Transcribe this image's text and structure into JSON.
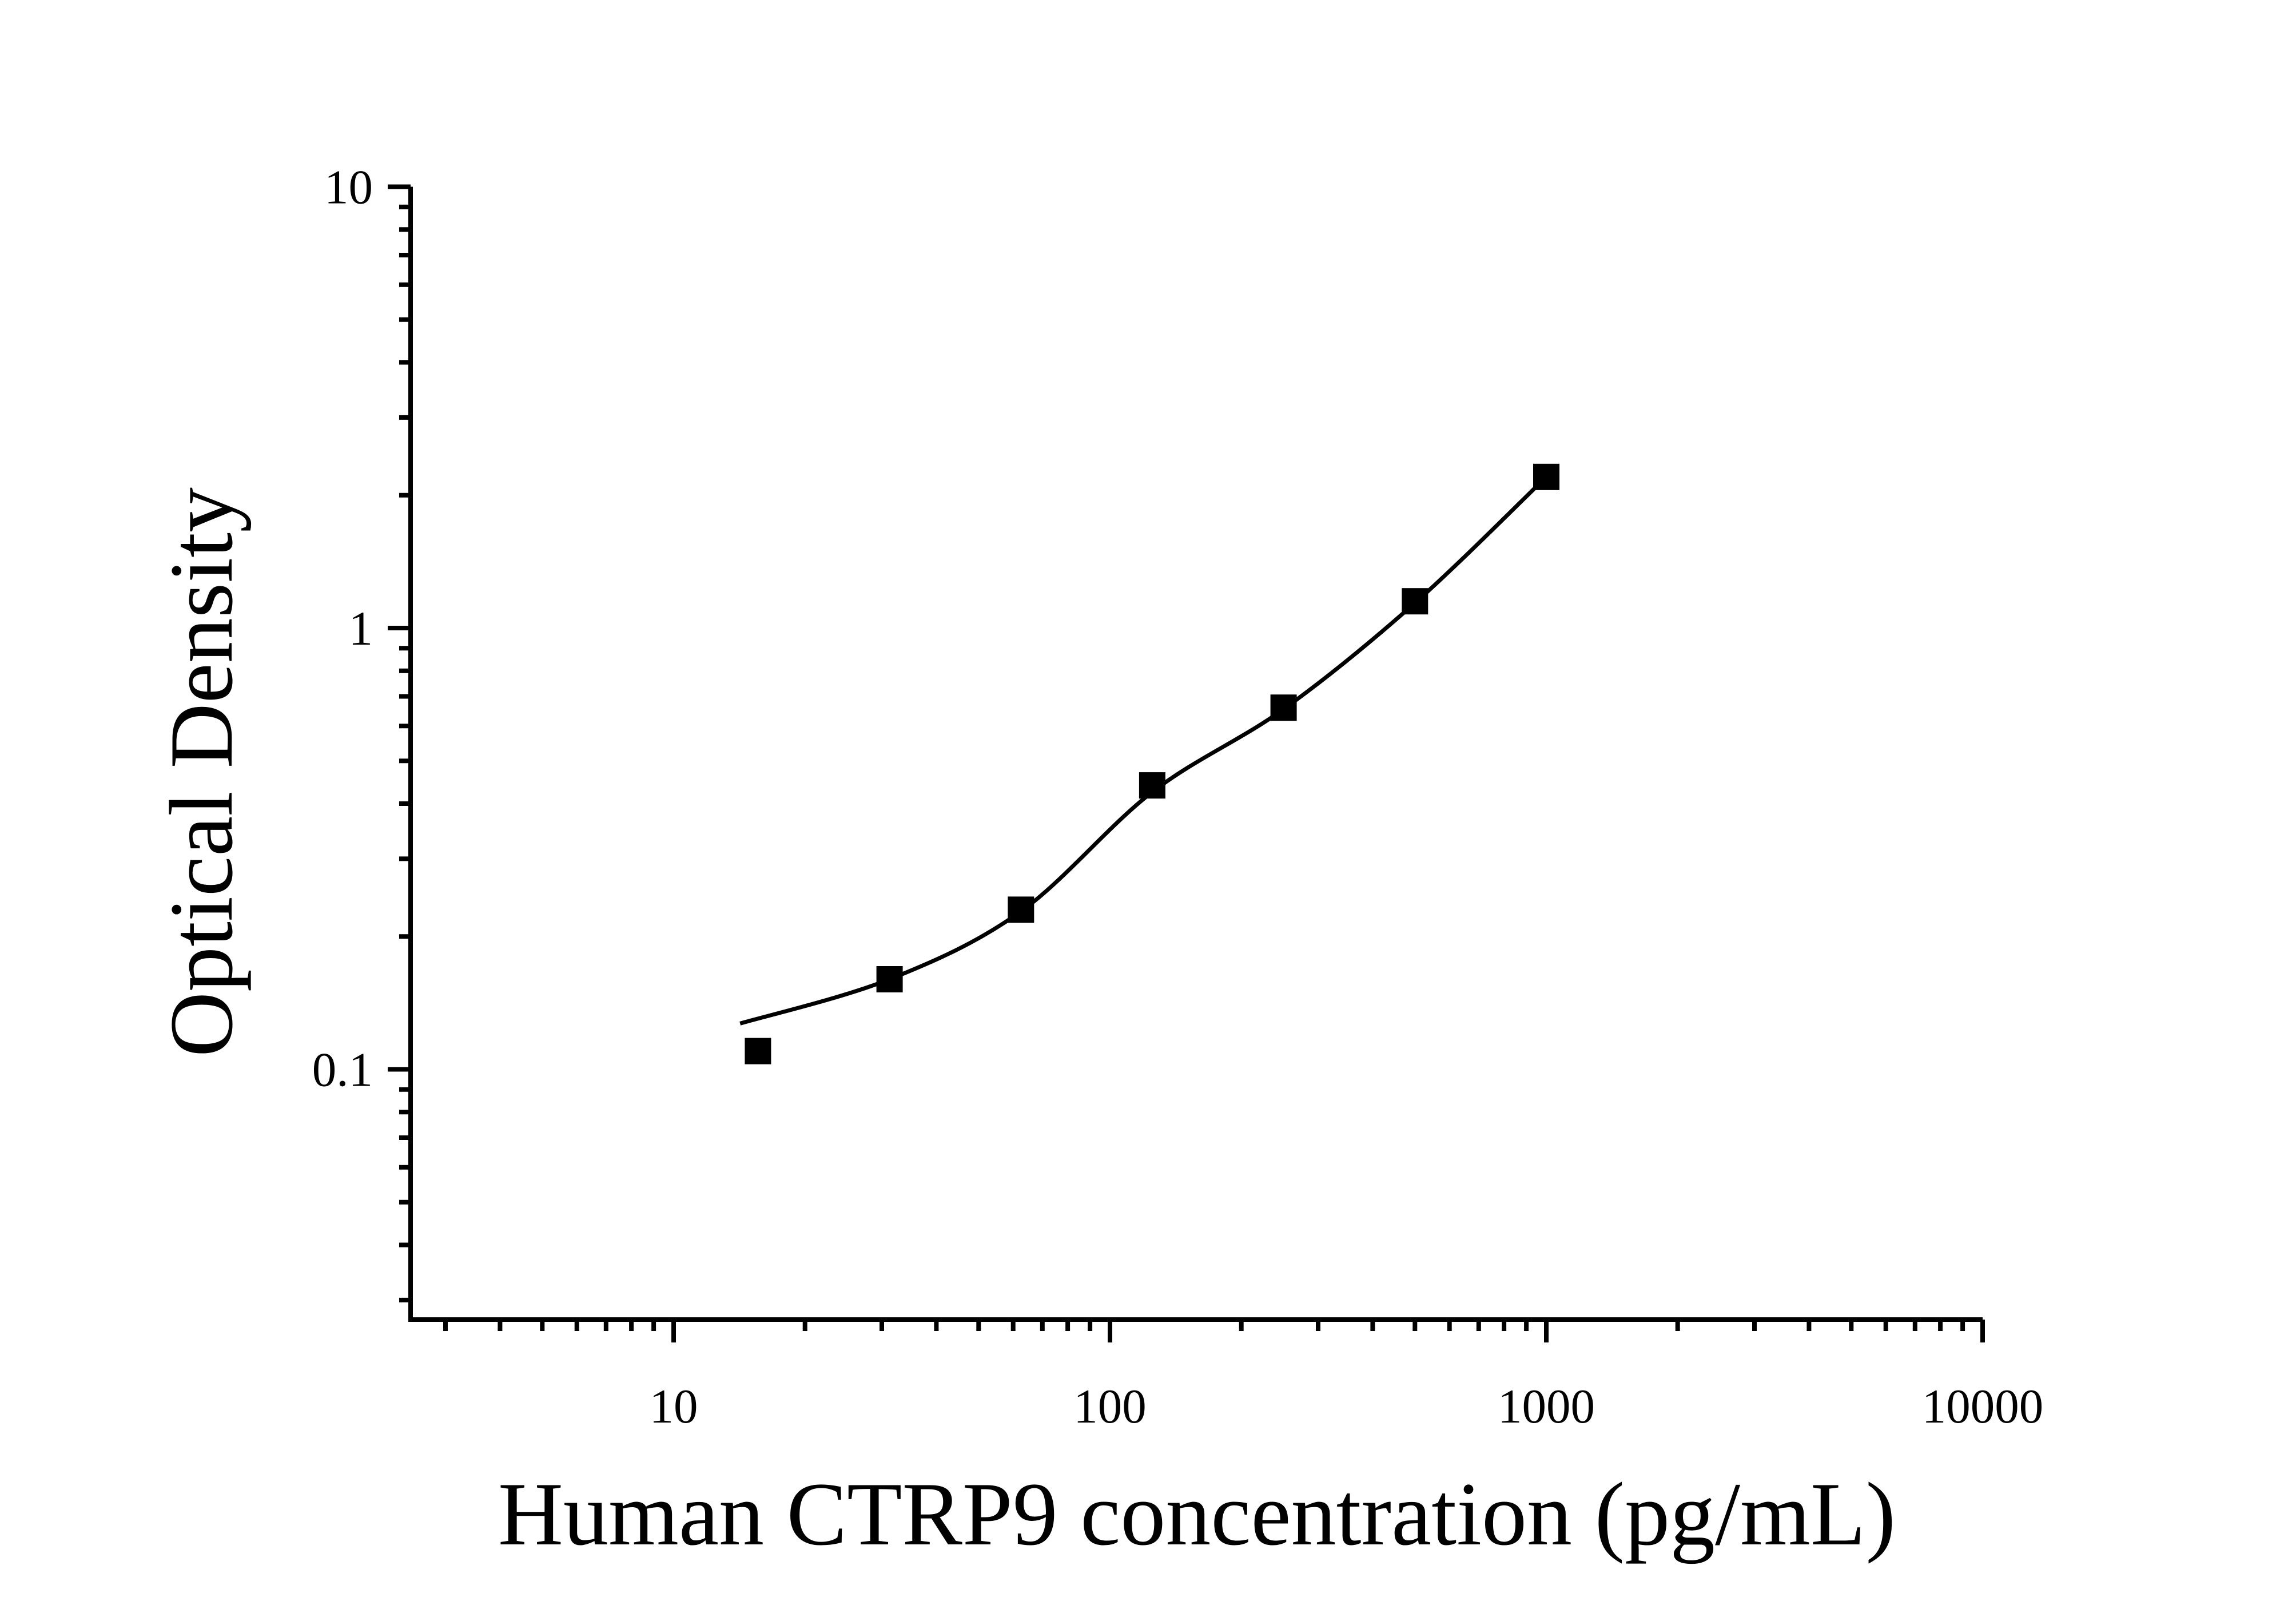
{
  "figure": {
    "background": "#ffffff",
    "ink_color": "#000000"
  },
  "chart_data": {
    "type": "scatter",
    "title": "",
    "xlabel": "Human CTRP9 concentration (pg/mL)",
    "ylabel": "Optical Density",
    "x_scale": "log",
    "y_scale": "log",
    "xlim": [
      2.5,
      10000
    ],
    "ylim": [
      0.027,
      10
    ],
    "grid": false,
    "legend": "none",
    "x_ticks": {
      "values": [
        10,
        100,
        1000,
        10000
      ],
      "labels": [
        "10",
        "100",
        "1000",
        "10000"
      ]
    },
    "y_ticks": {
      "values": [
        10,
        1,
        0.1
      ],
      "labels": [
        "10",
        "1",
        "0.1"
      ]
    },
    "series": [
      {
        "name": "standards",
        "marker": "filled-square",
        "color": "#000000",
        "points": [
          {
            "x": 15.6,
            "od": 0.11
          },
          {
            "x": 31.25,
            "od": 0.16
          },
          {
            "x": 62.5,
            "od": 0.23
          },
          {
            "x": 125,
            "od": 0.44
          },
          {
            "x": 250,
            "od": 0.66
          },
          {
            "x": 500,
            "od": 1.15
          },
          {
            "x": 1000,
            "od": 2.2
          }
        ]
      }
    ],
    "fit_curve": {
      "name": "4pl-fit",
      "color": "#000000",
      "anchors": [
        {
          "x": 14.2,
          "od": 0.127
        },
        {
          "x": 31.25,
          "od": 0.16
        },
        {
          "x": 62.5,
          "od": 0.228
        },
        {
          "x": 125,
          "od": 0.425
        },
        {
          "x": 250,
          "od": 0.655
        },
        {
          "x": 500,
          "od": 1.14
        },
        {
          "x": 1000,
          "od": 2.2
        }
      ]
    }
  }
}
